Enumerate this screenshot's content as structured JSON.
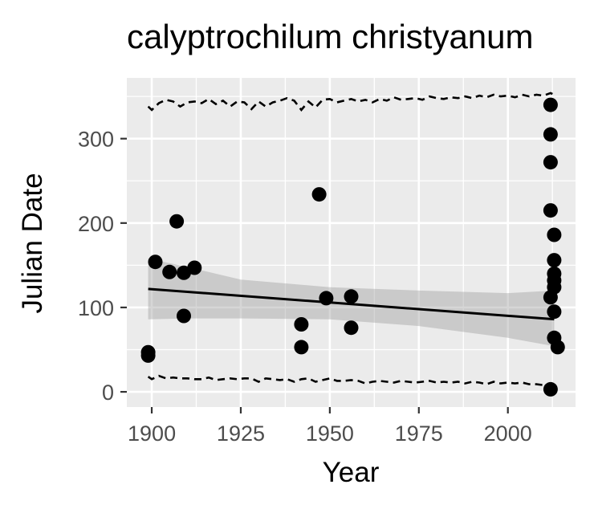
{
  "chart_data": {
    "type": "scatter",
    "title": "calyptrochilum christyanum",
    "xlabel": "Year",
    "ylabel": "Julian Date",
    "xlim": [
      1893,
      2019
    ],
    "ylim": [
      -18,
      372
    ],
    "x_ticks": [
      1900,
      1925,
      1950,
      1975,
      2000
    ],
    "y_ticks": [
      0,
      100,
      200,
      300
    ],
    "x_tick_labels": [
      "1900",
      "1925",
      "1950",
      "1975",
      "2000"
    ],
    "y_tick_labels": [
      "0",
      "100",
      "200",
      "300"
    ],
    "grid": true,
    "background": "#ebebeb",
    "points": [
      {
        "x": 1899,
        "y": 43
      },
      {
        "x": 1899,
        "y": 47
      },
      {
        "x": 1901,
        "y": 154
      },
      {
        "x": 1905,
        "y": 142
      },
      {
        "x": 1907,
        "y": 202
      },
      {
        "x": 1909,
        "y": 141
      },
      {
        "x": 1909,
        "y": 90
      },
      {
        "x": 1912,
        "y": 147
      },
      {
        "x": 1942,
        "y": 80
      },
      {
        "x": 1942,
        "y": 53
      },
      {
        "x": 1947,
        "y": 234
      },
      {
        "x": 1949,
        "y": 111
      },
      {
        "x": 1956,
        "y": 113
      },
      {
        "x": 1956,
        "y": 76
      },
      {
        "x": 2012,
        "y": 340
      },
      {
        "x": 2012,
        "y": 305
      },
      {
        "x": 2012,
        "y": 272
      },
      {
        "x": 2012,
        "y": 215
      },
      {
        "x": 2012,
        "y": 112
      },
      {
        "x": 2012,
        "y": 3
      },
      {
        "x": 2013,
        "y": 186
      },
      {
        "x": 2013,
        "y": 156
      },
      {
        "x": 2013,
        "y": 140
      },
      {
        "x": 2013,
        "y": 132
      },
      {
        "x": 2013,
        "y": 124
      },
      {
        "x": 2013,
        "y": 95
      },
      {
        "x": 2013,
        "y": 64
      },
      {
        "x": 2014,
        "y": 53
      }
    ],
    "trend_line": {
      "x": [
        1899,
        2013
      ],
      "y": [
        122,
        86
      ]
    },
    "confidence_band": {
      "x": [
        1899,
        1910,
        1925,
        1950,
        1975,
        2000,
        2013
      ],
      "lower": [
        86,
        87,
        87,
        86,
        78,
        64,
        54
      ],
      "upper": [
        158,
        148,
        133,
        124,
        120,
        117,
        120
      ]
    },
    "upper_bound_line": {
      "x": [
        1899,
        1900,
        1902,
        1904,
        1906,
        1908,
        1910,
        1912,
        1914,
        1916,
        1918,
        1920,
        1922,
        1924,
        1926,
        1928,
        1930,
        1932,
        1934,
        1936,
        1938,
        1940,
        1942,
        1944,
        1946,
        1948,
        1950,
        1952,
        1954,
        1956,
        1958,
        1960,
        1962,
        1964,
        1966,
        1968,
        1970,
        1972,
        1974,
        1976,
        1978,
        1980,
        1982,
        1984,
        1986,
        1988,
        1990,
        1992,
        1994,
        1996,
        1998,
        2000,
        2002,
        2004,
        2006,
        2008,
        2010,
        2012,
        2013
      ],
      "y": [
        338,
        334,
        342,
        346,
        344,
        338,
        343,
        344,
        342,
        347,
        341,
        345,
        338,
        344,
        343,
        335,
        344,
        338,
        343,
        345,
        348,
        345,
        334,
        344,
        337,
        346,
        347,
        343,
        345,
        347,
        344,
        346,
        343,
        347,
        345,
        349,
        346,
        347,
        348,
        346,
        350,
        348,
        347,
        349,
        348,
        350,
        348,
        351,
        349,
        352,
        350,
        351,
        349,
        352,
        350,
        352,
        351,
        354,
        352
      ]
    },
    "lower_bound_line": {
      "x": [
        1899,
        1900,
        1902,
        1904,
        1906,
        1908,
        1910,
        1912,
        1914,
        1916,
        1918,
        1920,
        1922,
        1924,
        1926,
        1928,
        1930,
        1932,
        1934,
        1936,
        1938,
        1940,
        1942,
        1944,
        1946,
        1948,
        1950,
        1952,
        1954,
        1956,
        1958,
        1960,
        1962,
        1964,
        1966,
        1968,
        1970,
        1972,
        1974,
        1976,
        1978,
        1980,
        1982,
        1984,
        1986,
        1988,
        1990,
        1992,
        1994,
        1996,
        1998,
        2000,
        2002,
        2004,
        2006,
        2008,
        2010,
        2012,
        2013
      ],
      "y": [
        18,
        15,
        19,
        16,
        17,
        16,
        16,
        15,
        15,
        17,
        14,
        15,
        16,
        15,
        16,
        16,
        12,
        16,
        15,
        14,
        15,
        12,
        15,
        16,
        12,
        14,
        16,
        13,
        13,
        14,
        13,
        10,
        12,
        13,
        12,
        11,
        13,
        12,
        11,
        12,
        13,
        11,
        12,
        11,
        12,
        10,
        12,
        11,
        9,
        12,
        10,
        11,
        10,
        11,
        9,
        9,
        8,
        7,
        6
      ]
    }
  }
}
